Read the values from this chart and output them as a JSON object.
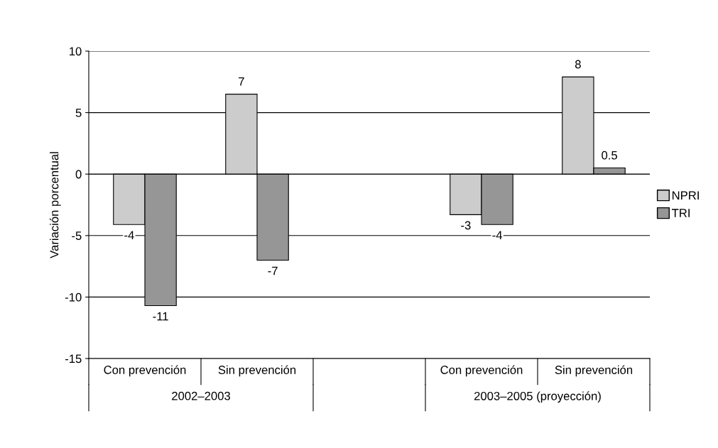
{
  "chart_data": {
    "type": "bar",
    "ylabel": "Variación porcentual",
    "categories": [
      "Con prevención",
      "Sin prevención",
      null,
      "Con prevención",
      "Sin prevención"
    ],
    "series": [
      {
        "name": "NPRI",
        "color": "#cccccc",
        "values": [
          -4.1,
          6.5,
          null,
          -3.3,
          7.9
        ],
        "value_labels": [
          "-4",
          "7",
          null,
          "-3",
          "8"
        ]
      },
      {
        "name": "TRI",
        "color": "#969696",
        "values": [
          -10.7,
          -7.0,
          null,
          -4.1,
          0.5
        ],
        "value_labels": [
          "-11",
          "-7",
          null,
          "-4",
          "0.5"
        ]
      }
    ],
    "annotations": [
      "2002–2003",
      "2003–2005 (proyección)"
    ],
    "ylim": [
      -15,
      10
    ],
    "yticks": [
      -15,
      -10,
      -5,
      0,
      5,
      10
    ],
    "grid": "y",
    "legend": "right"
  }
}
